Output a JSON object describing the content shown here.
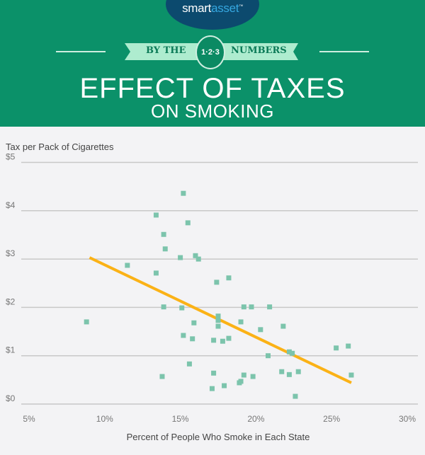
{
  "brand": {
    "name_part1": "smart",
    "name_part2": "asset",
    "tm": "™"
  },
  "banner": {
    "left": "BY THE",
    "badge": "1·2·3",
    "right": "NUMBERS"
  },
  "title": {
    "line1": "EFFECT OF TAXES",
    "line2": "ON SMOKING"
  },
  "colors": {
    "header": "#0b9169",
    "points": "#7cc4ac",
    "trend": "#fbb216",
    "logo_oval": "#0c4a6e"
  },
  "chart_data": {
    "type": "scatter",
    "xlabel": "Percent of People Who Smoke in Each State",
    "ylabel": "Tax per Pack of Cigarettes",
    "xlim": [
      5,
      30
    ],
    "ylim": [
      0,
      5
    ],
    "x_ticks": [
      "5%",
      "10%",
      "15%",
      "20%",
      "25%",
      "30%"
    ],
    "y_ticks": [
      "$0",
      "$1",
      "$2",
      "$3",
      "$4",
      "$5"
    ],
    "grid": "horizontal",
    "points": [
      [
        8.8,
        1.7
      ],
      [
        11.5,
        2.87
      ],
      [
        13.4,
        3.91
      ],
      [
        13.9,
        3.51
      ],
      [
        14.0,
        3.21
      ],
      [
        13.4,
        2.71
      ],
      [
        13.9,
        2.01
      ],
      [
        13.8,
        0.57
      ],
      [
        15.0,
        3.03
      ],
      [
        15.1,
        1.99
      ],
      [
        15.2,
        1.42
      ],
      [
        15.2,
        4.36
      ],
      [
        15.5,
        3.75
      ],
      [
        15.6,
        0.83
      ],
      [
        15.8,
        1.35
      ],
      [
        15.9,
        1.68
      ],
      [
        16.0,
        3.07
      ],
      [
        16.2,
        3.0
      ],
      [
        17.1,
        0.32
      ],
      [
        17.2,
        1.32
      ],
      [
        17.2,
        0.64
      ],
      [
        17.4,
        2.52
      ],
      [
        17.5,
        1.61
      ],
      [
        17.5,
        1.73
      ],
      [
        17.5,
        1.82
      ],
      [
        17.8,
        1.3
      ],
      [
        17.9,
        0.38
      ],
      [
        18.2,
        2.61
      ],
      [
        18.2,
        1.36
      ],
      [
        18.9,
        0.44
      ],
      [
        19.0,
        0.47
      ],
      [
        19.0,
        1.7
      ],
      [
        19.2,
        2.01
      ],
      [
        19.2,
        0.6
      ],
      [
        19.7,
        2.01
      ],
      [
        19.8,
        0.57
      ],
      [
        20.3,
        1.54
      ],
      [
        20.8,
        1.0
      ],
      [
        20.9,
        2.01
      ],
      [
        21.8,
        1.61
      ],
      [
        21.7,
        0.67
      ],
      [
        22.2,
        1.08
      ],
      [
        22.2,
        0.61
      ],
      [
        22.4,
        1.05
      ],
      [
        22.6,
        0.16
      ],
      [
        22.8,
        0.67
      ],
      [
        25.3,
        1.16
      ],
      [
        26.1,
        1.2
      ],
      [
        26.3,
        0.6
      ]
    ],
    "trendline": [
      [
        9.0,
        3.03
      ],
      [
        26.3,
        0.44
      ]
    ]
  }
}
